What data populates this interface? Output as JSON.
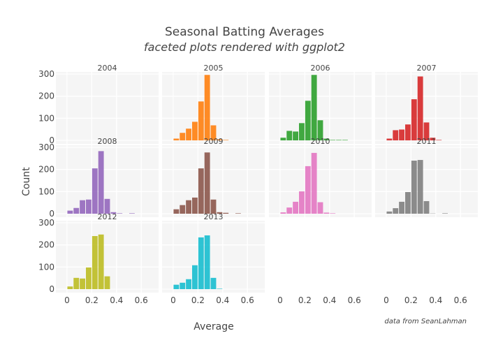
{
  "chart_data": {
    "type": "bar",
    "title": "Seasonal Batting Averages",
    "subtitle": "faceted plots rendered with ggplot2",
    "xlabel": "Average",
    "ylabel": "Count",
    "annotation": "data from SeanLahman",
    "xlim": [
      -0.09,
      0.74
    ],
    "ylim": [
      0,
      310
    ],
    "x_ticks": [
      "0",
      "0.2",
      "0.4",
      "0.6"
    ],
    "y_ticks": [
      "0",
      "100",
      "200",
      "300"
    ],
    "bin_width": 0.05,
    "bin_starts": [
      0,
      0.05,
      0.1,
      0.15,
      0.2,
      0.25,
      0.3,
      0.35,
      0.4,
      0.45,
      0.5
    ],
    "grid": true,
    "legend": "none",
    "panels": [
      {
        "name": "2004",
        "color": "#1f77b4",
        "values": [
          0,
          0,
          0,
          0,
          0,
          0,
          0,
          0,
          0,
          0,
          0
        ]
      },
      {
        "name": "2005",
        "color": "#ff7f0e",
        "values": [
          8,
          34,
          53,
          84,
          176,
          296,
          68,
          5,
          2,
          0,
          0
        ]
      },
      {
        "name": "2006",
        "color": "#2ca02c",
        "values": [
          12,
          43,
          40,
          78,
          179,
          296,
          91,
          8,
          2,
          2,
          2
        ]
      },
      {
        "name": "2007",
        "color": "#d62728",
        "values": [
          8,
          46,
          49,
          72,
          186,
          289,
          81,
          12,
          2,
          0,
          0
        ]
      },
      {
        "name": "2008",
        "color": "#9467bd",
        "values": [
          14,
          26,
          61,
          64,
          205,
          283,
          67,
          7,
          2,
          0,
          2
        ]
      },
      {
        "name": "2009",
        "color": "#8c564b",
        "values": [
          20,
          39,
          61,
          73,
          205,
          277,
          64,
          7,
          4,
          0,
          2
        ]
      },
      {
        "name": "2010",
        "color": "#e377c2",
        "values": [
          6,
          28,
          54,
          101,
          215,
          275,
          52,
          5,
          2,
          0,
          0
        ]
      },
      {
        "name": "2011",
        "color": "#7f7f7f",
        "values": [
          10,
          25,
          54,
          98,
          240,
          243,
          57,
          1,
          0,
          2,
          0
        ]
      },
      {
        "name": "2012",
        "color": "#bcbd22",
        "values": [
          12,
          51,
          48,
          98,
          240,
          247,
          58,
          0,
          0,
          0,
          0
        ]
      },
      {
        "name": "2013",
        "color": "#17becf",
        "values": [
          20,
          29,
          45,
          108,
          234,
          243,
          51,
          2,
          0,
          0,
          0
        ]
      }
    ]
  }
}
